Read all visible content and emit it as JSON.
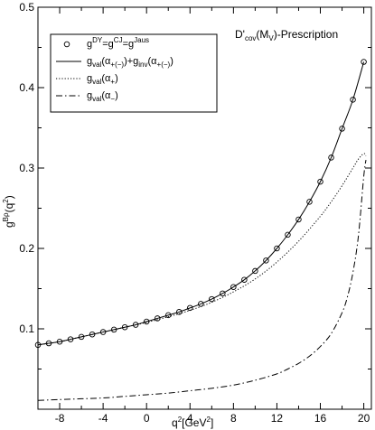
{
  "chart_data": {
    "type": "line",
    "annotation": {
      "main": "D'",
      "sub": "cov",
      "mid": "(M",
      "sub2": "V",
      "tail": ")-Prescription"
    },
    "xlabel": {
      "base": "q",
      "sup": "2",
      "rest": "[GeV",
      "sup2": "2",
      "end": "]"
    },
    "ylabel": {
      "base": "g",
      "sup": "Bρ",
      "rest": "(q",
      "sup2": "2",
      "end": ")"
    },
    "xlim": [
      -10,
      20.7
    ],
    "ylim": [
      0,
      0.5
    ],
    "x_ticks": [
      -8,
      -4,
      0,
      4,
      8,
      12,
      16,
      20
    ],
    "y_ticks": [
      0.1,
      0.2,
      0.3,
      0.4,
      0.5
    ],
    "legend": {
      "placement": "top-left",
      "entries": [
        {
          "style": "circles",
          "parts": [
            {
              "t": "g"
            },
            {
              "t": "DY",
              "sup": true
            },
            {
              "t": "=g"
            },
            {
              "t": "CJ",
              "sup": true
            },
            {
              "t": "=g"
            },
            {
              "t": "Jaus",
              "sup": true
            }
          ]
        },
        {
          "style": "solid",
          "parts": [
            {
              "t": "g"
            },
            {
              "t": "val",
              "sub": true
            },
            {
              "t": "(α"
            },
            {
              "t": "+(−)",
              "sub": true
            },
            {
              "t": ")+g"
            },
            {
              "t": "inv",
              "sub": true
            },
            {
              "t": "(α"
            },
            {
              "t": "+(−)",
              "sub": true
            },
            {
              "t": ")"
            }
          ]
        },
        {
          "style": "dotted",
          "parts": [
            {
              "t": "g"
            },
            {
              "t": "val",
              "sub": true
            },
            {
              "t": "(α"
            },
            {
              "t": "+",
              "sub": true
            },
            {
              "t": ")"
            }
          ]
        },
        {
          "style": "dashdot",
          "parts": [
            {
              "t": "g"
            },
            {
              "t": "val",
              "sub": true
            },
            {
              "t": "(α"
            },
            {
              "t": "−",
              "sub": true
            },
            {
              "t": ")"
            }
          ]
        }
      ]
    },
    "series": [
      {
        "style": "solid",
        "x": [
          -10,
          -9,
          -8,
          -7,
          -6,
          -5,
          -4,
          -3,
          -2,
          -1,
          0,
          1,
          2,
          3,
          4,
          5,
          6,
          7,
          8,
          9,
          10,
          11,
          12,
          13,
          14,
          15,
          16,
          17,
          18,
          19,
          20
        ],
        "y": [
          0.08,
          0.082,
          0.084,
          0.087,
          0.09,
          0.093,
          0.096,
          0.099,
          0.102,
          0.105,
          0.109,
          0.113,
          0.117,
          0.121,
          0.126,
          0.131,
          0.137,
          0.144,
          0.152,
          0.161,
          0.172,
          0.185,
          0.2,
          0.217,
          0.236,
          0.258,
          0.283,
          0.313,
          0.349,
          0.385,
          0.432
        ]
      },
      {
        "style": "circles",
        "x": [
          -10,
          -9,
          -8,
          -7,
          -6,
          -5,
          -4,
          -3,
          -2,
          -1,
          0,
          1,
          2,
          3,
          4,
          5,
          6,
          7,
          8,
          9,
          10,
          11,
          12,
          13,
          14,
          15,
          16,
          17,
          18,
          19,
          20
        ],
        "y": [
          0.08,
          0.082,
          0.084,
          0.087,
          0.09,
          0.093,
          0.096,
          0.099,
          0.102,
          0.105,
          0.109,
          0.113,
          0.117,
          0.121,
          0.126,
          0.131,
          0.137,
          0.144,
          0.152,
          0.161,
          0.172,
          0.185,
          0.2,
          0.217,
          0.236,
          0.258,
          0.283,
          0.313,
          0.349,
          0.385,
          0.432
        ]
      },
      {
        "style": "dotted",
        "x": [
          -10,
          -8,
          -6,
          -4,
          -2,
          0,
          2,
          4,
          6,
          8,
          10,
          12,
          14,
          16,
          17,
          18,
          19,
          19.5,
          20,
          20.2
        ],
        "y": [
          0.08,
          0.084,
          0.09,
          0.096,
          0.102,
          0.108,
          0.115,
          0.123,
          0.133,
          0.146,
          0.162,
          0.183,
          0.209,
          0.24,
          0.258,
          0.278,
          0.3,
          0.311,
          0.318,
          0.315
        ]
      },
      {
        "style": "dashdot",
        "x": [
          -10,
          -8,
          -6,
          -4,
          -2,
          0,
          2,
          4,
          6,
          8,
          10,
          12,
          13,
          14,
          15,
          16,
          17,
          18,
          18.5,
          19,
          19.5,
          20,
          20.2
        ],
        "y": [
          0.011,
          0.012,
          0.013,
          0.014,
          0.016,
          0.018,
          0.02,
          0.023,
          0.026,
          0.03,
          0.036,
          0.044,
          0.05,
          0.057,
          0.066,
          0.078,
          0.094,
          0.12,
          0.14,
          0.17,
          0.215,
          0.29,
          0.31
        ]
      }
    ]
  }
}
